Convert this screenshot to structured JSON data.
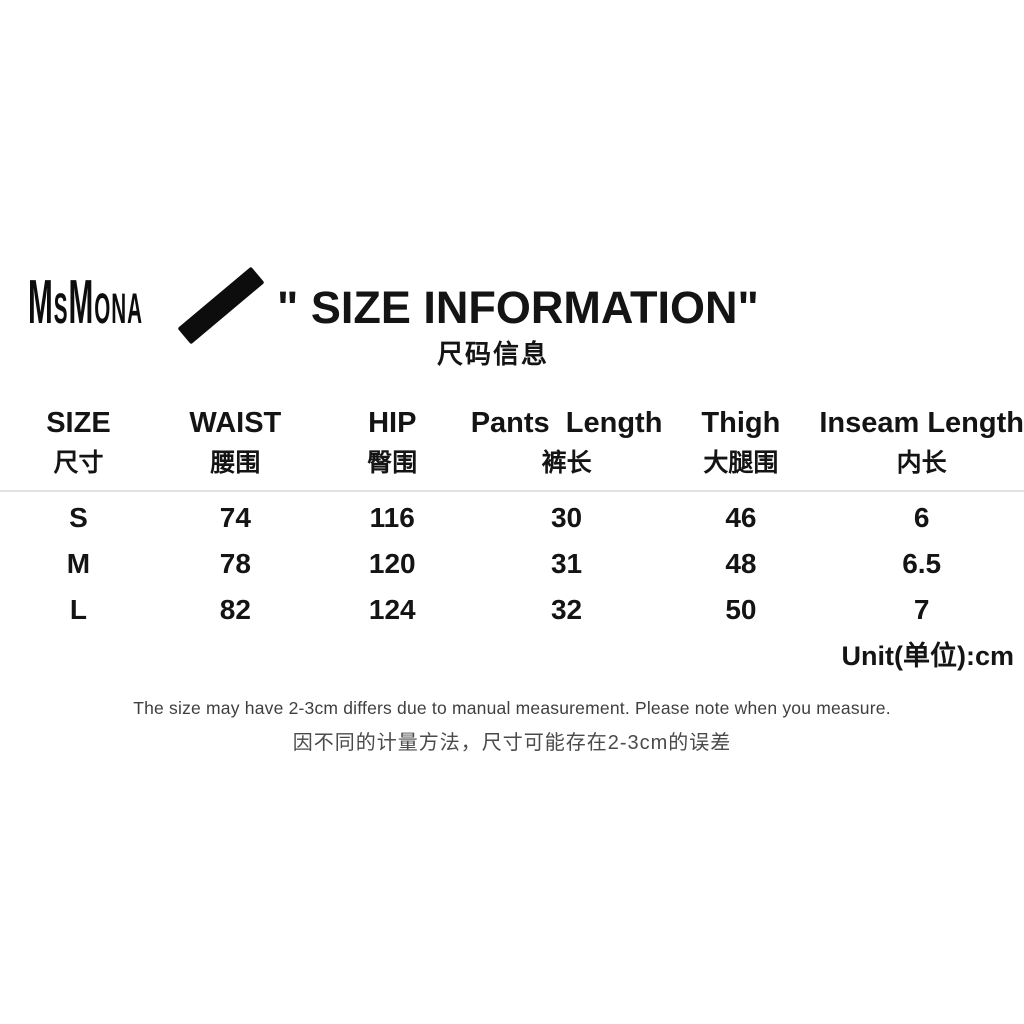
{
  "brand": {
    "logo": "MsMona"
  },
  "header": {
    "title": "\" SIZE INFORMATION\"",
    "subtitle_zh": "尺码信息",
    "slash_icon_color": "#0d0d0d"
  },
  "table": {
    "columns": [
      {
        "en": "SIZE",
        "zh": "尺寸"
      },
      {
        "en": "WAIST",
        "zh": "腰围"
      },
      {
        "en": "HIP",
        "zh": "臀围"
      },
      {
        "en": "Pants  Length",
        "zh": "裤长"
      },
      {
        "en": "Thigh",
        "zh": "大腿围"
      },
      {
        "en": "Inseam Length",
        "zh": "内长"
      }
    ],
    "rows": [
      {
        "size": "S",
        "waist": "74",
        "hip": "116",
        "pants_length": "30",
        "thigh": "46",
        "inseam_length": "6"
      },
      {
        "size": "M",
        "waist": "78",
        "hip": "120",
        "pants_length": "31",
        "thigh": "48",
        "inseam_length": "6.5"
      },
      {
        "size": "L",
        "waist": "82",
        "hip": "124",
        "pants_length": "32",
        "thigh": "50",
        "inseam_length": "7"
      }
    ],
    "unit_label": "Unit(单位):cm"
  },
  "notes": {
    "en": "The size may have 2-3cm differs due to manual measurement. Please note when you measure.",
    "zh": "因不同的计量方法，尺寸可能存在2-3cm的误差"
  },
  "colors": {
    "background": "#ffffff",
    "text": "#141414",
    "note_text": "#3f3f3f",
    "divider": "#3d3d3d"
  }
}
